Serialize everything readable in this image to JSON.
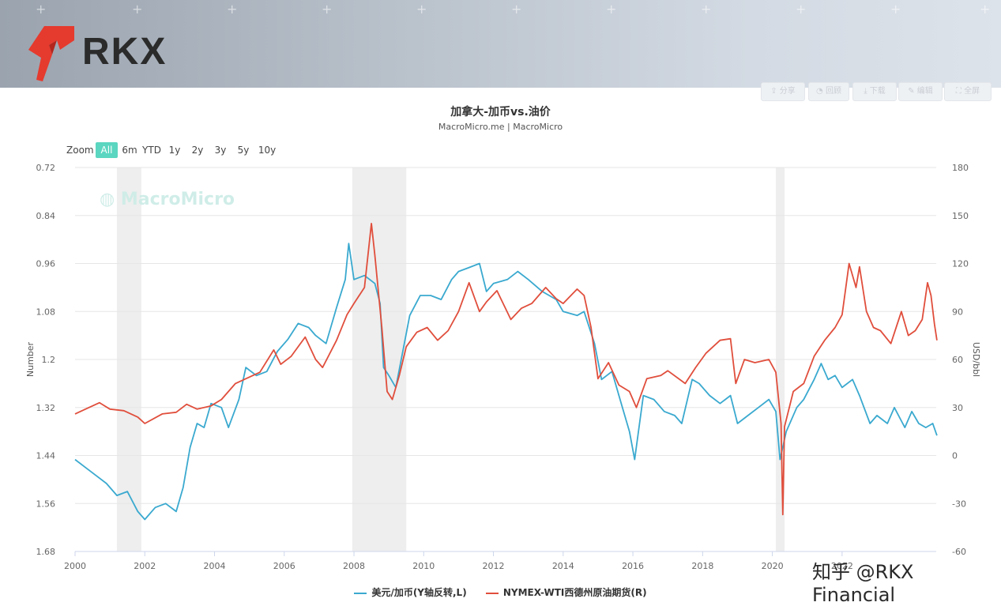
{
  "brand": {
    "name": "RKX",
    "accent_color": "#e53a2e",
    "credit": "知乎 @RKX Financial"
  },
  "toolbar": {
    "buttons": [
      {
        "label": "分享",
        "icon": "share-icon"
      },
      {
        "label": "回顾",
        "icon": "history-icon"
      },
      {
        "label": "下载",
        "icon": "download-icon"
      },
      {
        "label": "编辑",
        "icon": "edit-icon"
      },
      {
        "label": "全屏",
        "icon": "fullscreen-icon"
      }
    ]
  },
  "zoom": {
    "label": "Zoom",
    "options": [
      "All",
      "6m",
      "YTD",
      "1y",
      "2y",
      "3y",
      "5y",
      "10y"
    ],
    "selected": "All"
  },
  "watermark": "MacroMicro",
  "chart_data": {
    "type": "line",
    "title": "加拿大-加币vs.油价",
    "subtitle": "MacroMicro.me | MacroMicro",
    "left_axis": {
      "label": "Number",
      "reversed": true,
      "ylim": [
        0.72,
        1.68
      ],
      "ticks": [
        "0.72",
        "0.84",
        "0.96",
        "1.08",
        "1.2",
        "1.32",
        "1.44",
        "1.56",
        "1.68"
      ]
    },
    "right_axis": {
      "label": "USD/bbl",
      "ylim": [
        -60,
        180
      ],
      "ticks": [
        "180",
        "150",
        "120",
        "90",
        "60",
        "30",
        "0",
        "-30",
        "-60"
      ]
    },
    "x_axis": {
      "range": [
        2000,
        2024.7
      ],
      "ticks": [
        "2000",
        "2002",
        "2004",
        "2006",
        "2008",
        "2010",
        "2012",
        "2014",
        "2016",
        "2018",
        "2020",
        "2022"
      ]
    },
    "grid": true,
    "legend_placement": "bottom-center",
    "recession_bands": [
      [
        2001.2,
        2001.9
      ],
      [
        2007.95,
        2009.5
      ],
      [
        2020.1,
        2020.35
      ]
    ],
    "series": [
      {
        "name": "美元/加币(Y轴反转,L)",
        "axis": "left",
        "color": "#3aa9cf",
        "points": [
          [
            2000.0,
            1.45
          ],
          [
            2000.3,
            1.47
          ],
          [
            2000.6,
            1.49
          ],
          [
            2000.9,
            1.51
          ],
          [
            2001.2,
            1.54
          ],
          [
            2001.5,
            1.53
          ],
          [
            2001.8,
            1.58
          ],
          [
            2002.0,
            1.6
          ],
          [
            2002.3,
            1.57
          ],
          [
            2002.6,
            1.56
          ],
          [
            2002.9,
            1.58
          ],
          [
            2003.1,
            1.52
          ],
          [
            2003.3,
            1.42
          ],
          [
            2003.5,
            1.36
          ],
          [
            2003.7,
            1.37
          ],
          [
            2003.9,
            1.31
          ],
          [
            2004.2,
            1.32
          ],
          [
            2004.4,
            1.37
          ],
          [
            2004.7,
            1.3
          ],
          [
            2004.9,
            1.22
          ],
          [
            2005.2,
            1.24
          ],
          [
            2005.5,
            1.23
          ],
          [
            2005.8,
            1.18
          ],
          [
            2006.1,
            1.15
          ],
          [
            2006.4,
            1.11
          ],
          [
            2006.7,
            1.12
          ],
          [
            2006.9,
            1.14
          ],
          [
            2007.2,
            1.16
          ],
          [
            2007.5,
            1.07
          ],
          [
            2007.75,
            1.0
          ],
          [
            2007.85,
            0.91
          ],
          [
            2008.0,
            1.0
          ],
          [
            2008.3,
            0.99
          ],
          [
            2008.6,
            1.01
          ],
          [
            2008.75,
            1.06
          ],
          [
            2008.85,
            1.22
          ],
          [
            2009.0,
            1.24
          ],
          [
            2009.2,
            1.27
          ],
          [
            2009.4,
            1.18
          ],
          [
            2009.6,
            1.09
          ],
          [
            2009.9,
            1.04
          ],
          [
            2010.2,
            1.04
          ],
          [
            2010.5,
            1.05
          ],
          [
            2010.8,
            1.0
          ],
          [
            2011.0,
            0.98
          ],
          [
            2011.3,
            0.97
          ],
          [
            2011.6,
            0.96
          ],
          [
            2011.8,
            1.03
          ],
          [
            2012.0,
            1.01
          ],
          [
            2012.4,
            1.0
          ],
          [
            2012.7,
            0.98
          ],
          [
            2013.0,
            1.0
          ],
          [
            2013.4,
            1.03
          ],
          [
            2013.8,
            1.05
          ],
          [
            2014.0,
            1.08
          ],
          [
            2014.4,
            1.09
          ],
          [
            2014.6,
            1.08
          ],
          [
            2014.9,
            1.16
          ],
          [
            2015.1,
            1.25
          ],
          [
            2015.4,
            1.23
          ],
          [
            2015.7,
            1.32
          ],
          [
            2015.9,
            1.38
          ],
          [
            2016.05,
            1.45
          ],
          [
            2016.3,
            1.29
          ],
          [
            2016.6,
            1.3
          ],
          [
            2016.9,
            1.33
          ],
          [
            2017.2,
            1.34
          ],
          [
            2017.4,
            1.36
          ],
          [
            2017.7,
            1.25
          ],
          [
            2017.9,
            1.26
          ],
          [
            2018.2,
            1.29
          ],
          [
            2018.5,
            1.31
          ],
          [
            2018.8,
            1.29
          ],
          [
            2019.0,
            1.36
          ],
          [
            2019.3,
            1.34
          ],
          [
            2019.6,
            1.32
          ],
          [
            2019.9,
            1.3
          ],
          [
            2020.1,
            1.33
          ],
          [
            2020.22,
            1.45
          ],
          [
            2020.4,
            1.38
          ],
          [
            2020.7,
            1.32
          ],
          [
            2020.9,
            1.3
          ],
          [
            2021.2,
            1.25
          ],
          [
            2021.4,
            1.21
          ],
          [
            2021.6,
            1.25
          ],
          [
            2021.8,
            1.24
          ],
          [
            2022.0,
            1.27
          ],
          [
            2022.3,
            1.25
          ],
          [
            2022.5,
            1.29
          ],
          [
            2022.8,
            1.36
          ],
          [
            2023.0,
            1.34
          ],
          [
            2023.3,
            1.36
          ],
          [
            2023.5,
            1.32
          ],
          [
            2023.8,
            1.37
          ],
          [
            2024.0,
            1.33
          ],
          [
            2024.2,
            1.36
          ],
          [
            2024.4,
            1.37
          ],
          [
            2024.6,
            1.36
          ],
          [
            2024.72,
            1.39
          ]
        ]
      },
      {
        "name": "NYMEX-WTI西德州原油期货(R)",
        "axis": "right",
        "color": "#e04e3c",
        "points": [
          [
            2000.0,
            26
          ],
          [
            2000.3,
            29
          ],
          [
            2000.7,
            33
          ],
          [
            2001.0,
            29
          ],
          [
            2001.4,
            28
          ],
          [
            2001.8,
            24
          ],
          [
            2002.0,
            20
          ],
          [
            2002.5,
            26
          ],
          [
            2002.9,
            27
          ],
          [
            2003.2,
            32
          ],
          [
            2003.5,
            29
          ],
          [
            2003.9,
            31
          ],
          [
            2004.2,
            35
          ],
          [
            2004.6,
            45
          ],
          [
            2004.9,
            48
          ],
          [
            2005.3,
            52
          ],
          [
            2005.7,
            66
          ],
          [
            2005.9,
            57
          ],
          [
            2006.2,
            62
          ],
          [
            2006.6,
            74
          ],
          [
            2006.9,
            60
          ],
          [
            2007.1,
            55
          ],
          [
            2007.5,
            72
          ],
          [
            2007.8,
            88
          ],
          [
            2008.0,
            95
          ],
          [
            2008.3,
            105
          ],
          [
            2008.5,
            145
          ],
          [
            2008.6,
            125
          ],
          [
            2008.8,
            80
          ],
          [
            2008.95,
            40
          ],
          [
            2009.1,
            35
          ],
          [
            2009.3,
            50
          ],
          [
            2009.5,
            68
          ],
          [
            2009.8,
            77
          ],
          [
            2010.1,
            80
          ],
          [
            2010.4,
            72
          ],
          [
            2010.7,
            78
          ],
          [
            2011.0,
            90
          ],
          [
            2011.3,
            108
          ],
          [
            2011.6,
            90
          ],
          [
            2011.8,
            96
          ],
          [
            2012.1,
            103
          ],
          [
            2012.5,
            85
          ],
          [
            2012.8,
            92
          ],
          [
            2013.1,
            95
          ],
          [
            2013.5,
            105
          ],
          [
            2013.8,
            98
          ],
          [
            2014.0,
            95
          ],
          [
            2014.4,
            104
          ],
          [
            2014.6,
            100
          ],
          [
            2014.8,
            80
          ],
          [
            2015.0,
            48
          ],
          [
            2015.3,
            58
          ],
          [
            2015.6,
            44
          ],
          [
            2015.9,
            40
          ],
          [
            2016.1,
            30
          ],
          [
            2016.4,
            48
          ],
          [
            2016.8,
            50
          ],
          [
            2017.0,
            53
          ],
          [
            2017.5,
            45
          ],
          [
            2017.8,
            55
          ],
          [
            2018.1,
            64
          ],
          [
            2018.5,
            72
          ],
          [
            2018.8,
            73
          ],
          [
            2018.95,
            45
          ],
          [
            2019.2,
            60
          ],
          [
            2019.5,
            58
          ],
          [
            2019.9,
            60
          ],
          [
            2020.1,
            52
          ],
          [
            2020.25,
            20
          ],
          [
            2020.3,
            -37
          ],
          [
            2020.35,
            18
          ],
          [
            2020.6,
            40
          ],
          [
            2020.9,
            45
          ],
          [
            2021.2,
            62
          ],
          [
            2021.5,
            72
          ],
          [
            2021.8,
            80
          ],
          [
            2022.0,
            88
          ],
          [
            2022.2,
            120
          ],
          [
            2022.4,
            105
          ],
          [
            2022.5,
            118
          ],
          [
            2022.7,
            90
          ],
          [
            2022.9,
            80
          ],
          [
            2023.1,
            78
          ],
          [
            2023.4,
            70
          ],
          [
            2023.7,
            90
          ],
          [
            2023.9,
            75
          ],
          [
            2024.1,
            78
          ],
          [
            2024.3,
            85
          ],
          [
            2024.45,
            108
          ],
          [
            2024.55,
            100
          ],
          [
            2024.65,
            82
          ],
          [
            2024.72,
            72
          ]
        ]
      }
    ]
  }
}
